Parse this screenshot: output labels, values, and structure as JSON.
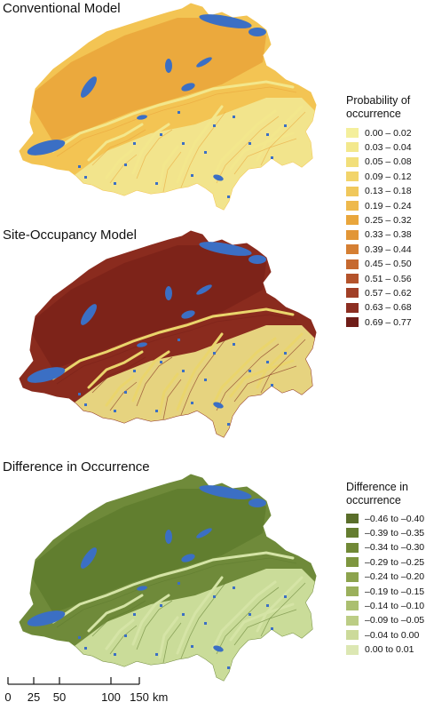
{
  "panels": [
    {
      "title": "Conventional Model",
      "base": "#f3c453",
      "lowland": "#e9a43a",
      "valley": "#f3e78c",
      "alpine": "#f2e892"
    },
    {
      "title": "Site-Occupancy Model",
      "base": "#8a2b1e",
      "lowland": "#7a2219",
      "valley": "#ead56c",
      "alpine": "#f0e68a"
    },
    {
      "title": "Difference in Occurrence",
      "base": "#6f8a3a",
      "lowland": "#5f7b2e",
      "valley": "#d5e4a6",
      "alpine": "#d4e4a4"
    }
  ],
  "lake_color": "#3b6fc4",
  "legend_probability": {
    "title": "Probability of occurrence",
    "items": [
      {
        "label": "0.00 – 0.02",
        "color": "#f4ef9c"
      },
      {
        "label": "0.03 – 0.04",
        "color": "#f3e88c"
      },
      {
        "label": "0.05 – 0.08",
        "color": "#f2df7a"
      },
      {
        "label": "0.09 – 0.12",
        "color": "#f2d46a"
      },
      {
        "label": "0.13 – 0.18",
        "color": "#f0c85c"
      },
      {
        "label": "0.19 – 0.24",
        "color": "#eeb94c"
      },
      {
        "label": "0.25 – 0.32",
        "color": "#e9a63c"
      },
      {
        "label": "0.33 – 0.38",
        "color": "#e29636"
      },
      {
        "label": "0.39 – 0.44",
        "color": "#d57f33"
      },
      {
        "label": "0.45 – 0.50",
        "color": "#c6692f"
      },
      {
        "label": "0.51 – 0.56",
        "color": "#b4532b"
      },
      {
        "label": "0.57 – 0.62",
        "color": "#a13f26"
      },
      {
        "label": "0.63 – 0.68",
        "color": "#8c2e21"
      },
      {
        "label": "0.69 – 0.77",
        "color": "#6f1d18"
      }
    ]
  },
  "legend_difference": {
    "title": "Difference in occurrence",
    "items": [
      {
        "label": "–0.46 to –0.40",
        "color": "#5a6e2a"
      },
      {
        "label": "–0.39 to –0.35",
        "color": "#657d30"
      },
      {
        "label": "–0.34 to –0.30",
        "color": "#718936"
      },
      {
        "label": "–0.29 to –0.25",
        "color": "#7e963f"
      },
      {
        "label": "–0.24 to –0.20",
        "color": "#8ca34d"
      },
      {
        "label": "–0.19 to –0.15",
        "color": "#9bb05c"
      },
      {
        "label": "–0.14 to –0.10",
        "color": "#abbf70"
      },
      {
        "label": "–0.09 to –0.05",
        "color": "#bccd85"
      },
      {
        "label": "–0.04 to 0.00",
        "color": "#ccda9a"
      },
      {
        "label": "0.00 to 0.01",
        "color": "#dce7b3"
      }
    ]
  },
  "scale_bar": {
    "ticks": [
      "0",
      "25",
      "50",
      "100",
      "150"
    ],
    "unit": "km"
  }
}
